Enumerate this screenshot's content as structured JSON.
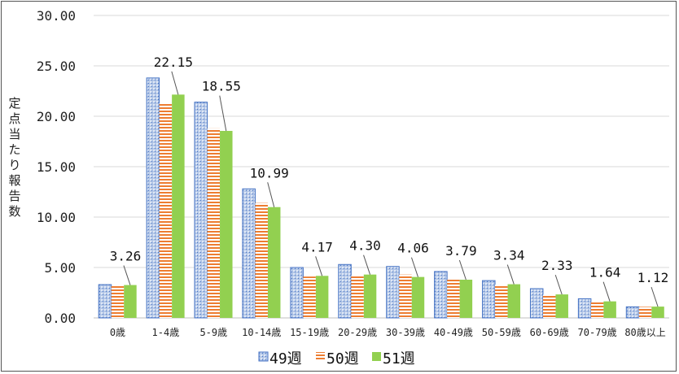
{
  "chart_data": {
    "type": "bar",
    "title": "",
    "xlabel": "",
    "ylabel": "定点当たり報告数",
    "ylim": [
      0,
      30
    ],
    "yticks": [
      "0.00",
      "5.00",
      "10.00",
      "15.00",
      "20.00",
      "25.00",
      "30.00"
    ],
    "grid": true,
    "legend_position": "bottom",
    "categories": [
      "0歳",
      "1-4歳",
      "5-9歳",
      "10-14歳",
      "15-19歳",
      "20-29歳",
      "30-39歳",
      "40-49歳",
      "50-59歳",
      "60-69歳",
      "70-79歳",
      "80歳以上"
    ],
    "series": [
      {
        "name": "49週",
        "color": "#4472C4",
        "values": [
          3.3,
          23.8,
          21.4,
          12.8,
          5.0,
          5.3,
          5.1,
          4.6,
          3.7,
          2.9,
          1.9,
          1.1
        ]
      },
      {
        "name": "50週",
        "color": "#ED7D31",
        "values": [
          3.15,
          21.3,
          18.8,
          11.4,
          4.1,
          4.2,
          4.3,
          3.8,
          3.3,
          2.3,
          1.55,
          1.1
        ]
      },
      {
        "name": "51週",
        "color": "#92D050",
        "values": [
          3.26,
          22.15,
          18.55,
          10.99,
          4.17,
          4.3,
          4.06,
          3.79,
          3.34,
          2.33,
          1.64,
          1.12
        ]
      }
    ],
    "data_labels": [
      "3.26",
      "22.15",
      "18.55",
      "10.99",
      "4.17",
      "4.30",
      "4.06",
      "3.79",
      "3.34",
      "2.33",
      "1.64",
      "1.12"
    ]
  }
}
